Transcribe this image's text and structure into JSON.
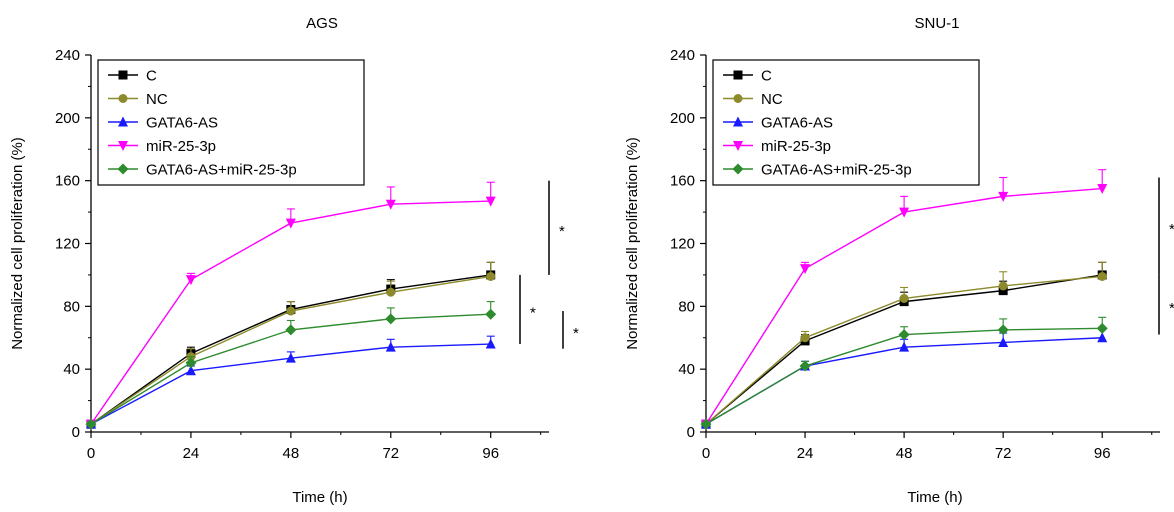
{
  "chart_data": [
    {
      "type": "line",
      "title": "AGS",
      "xlabel": "Time (h)",
      "ylabel": "Normalized cell proliferation (%)",
      "x": [
        0,
        24,
        48,
        72,
        96
      ],
      "xlim": [
        0,
        110
      ],
      "ylim": [
        0,
        240
      ],
      "xticks": [
        0,
        24,
        48,
        72,
        96
      ],
      "yticks": [
        0,
        40,
        80,
        120,
        160,
        200,
        240
      ],
      "legend_position": "top-left",
      "grid": false,
      "series": [
        {
          "name": "C",
          "color": "#000000",
          "marker": "square",
          "values": [
            5,
            50,
            78,
            91,
            100
          ],
          "errors": [
            0,
            4,
            5,
            6,
            8
          ]
        },
        {
          "name": "NC",
          "color": "#8c8a2a",
          "marker": "circle",
          "values": [
            5,
            48,
            77,
            89,
            99
          ],
          "errors": [
            0,
            5,
            6,
            7,
            9
          ]
        },
        {
          "name": "GATA6-AS",
          "color": "#1a1aff",
          "marker": "triangle-up",
          "values": [
            5,
            39,
            47,
            54,
            56
          ],
          "errors": [
            0,
            3,
            4,
            5,
            5
          ]
        },
        {
          "name": "miR-25-3p",
          "color": "#ff00ff",
          "marker": "triangle-down",
          "values": [
            5,
            97,
            133,
            145,
            147
          ],
          "errors": [
            0,
            4,
            9,
            11,
            12
          ]
        },
        {
          "name": "GATA6-AS+miR-25-3p",
          "color": "#2e8b2e",
          "marker": "diamond",
          "values": [
            5,
            44,
            65,
            72,
            75
          ],
          "errors": [
            0,
            4,
            6,
            7,
            8
          ]
        }
      ],
      "significance": [
        {
          "y_from": 100,
          "y_to": 160,
          "label": "*"
        },
        {
          "y_from": 56,
          "y_to": 100,
          "label": "*"
        },
        {
          "y_from": 53,
          "y_to": 77,
          "label": "*"
        }
      ]
    },
    {
      "type": "line",
      "title": "SNU-1",
      "xlabel": "Time (h)",
      "ylabel": "Normalized cell proliferation (%)",
      "x": [
        0,
        24,
        48,
        72,
        96
      ],
      "xlim": [
        0,
        110
      ],
      "ylim": [
        0,
        240
      ],
      "xticks": [
        0,
        24,
        48,
        72,
        96
      ],
      "yticks": [
        0,
        40,
        80,
        120,
        160,
        200,
        240
      ],
      "legend_position": "top-left",
      "grid": false,
      "series": [
        {
          "name": "C",
          "color": "#000000",
          "marker": "square",
          "values": [
            5,
            58,
            83,
            90,
            100
          ],
          "errors": [
            0,
            4,
            6,
            6,
            8
          ]
        },
        {
          "name": "NC",
          "color": "#8c8a2a",
          "marker": "circle",
          "values": [
            5,
            60,
            85,
            93,
            99
          ],
          "errors": [
            0,
            4,
            7,
            9,
            9
          ]
        },
        {
          "name": "GATA6-AS",
          "color": "#1a1aff",
          "marker": "triangle-up",
          "values": [
            5,
            42,
            54,
            57,
            60
          ],
          "errors": [
            0,
            3,
            5,
            6,
            6
          ]
        },
        {
          "name": "miR-25-3p",
          "color": "#ff00ff",
          "marker": "triangle-down",
          "values": [
            5,
            104,
            140,
            150,
            155
          ],
          "errors": [
            0,
            4,
            10,
            12,
            12
          ]
        },
        {
          "name": "GATA6-AS+miR-25-3p",
          "color": "#2e8b2e",
          "marker": "diamond",
          "values": [
            5,
            42,
            62,
            65,
            66
          ],
          "errors": [
            0,
            3,
            5,
            7,
            7
          ]
        }
      ],
      "significance": [
        {
          "y_from": 100,
          "y_to": 162,
          "label": "*"
        },
        {
          "y_from": 62,
          "y_to": 100,
          "label": "*"
        }
      ]
    }
  ]
}
